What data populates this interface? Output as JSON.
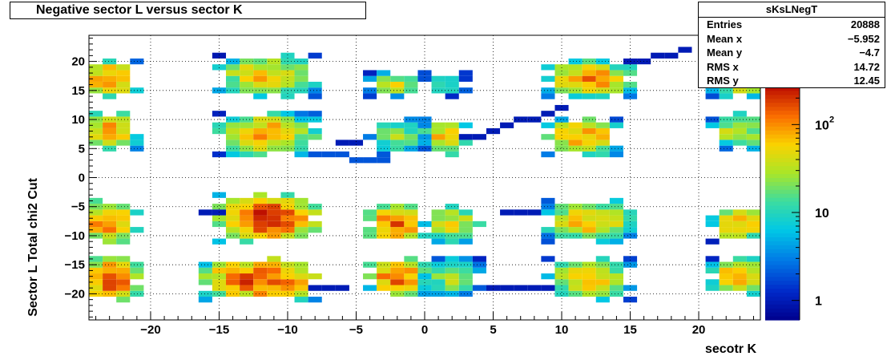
{
  "chart_data": {
    "type": "heatmap",
    "title": "Negative sector L versus sector K",
    "xlabel": "secotr K",
    "ylabel": "Sector L  Total chi2 Cut",
    "xlim": [
      -24.5,
      24.5
    ],
    "ylim": [
      -24.5,
      24.5
    ],
    "x_ticks": [
      -20,
      -15,
      -10,
      -5,
      0,
      5,
      10,
      15,
      20
    ],
    "y_ticks": [
      -20,
      -15,
      -10,
      -5,
      0,
      5,
      10,
      15,
      20
    ],
    "x_tick_labels": [
      "−20",
      "−15",
      "−10",
      "−5",
      "0",
      "5",
      "10",
      "15",
      "20"
    ],
    "y_tick_labels": [
      "−20",
      "−15",
      "−10",
      "−5",
      "0",
      "5",
      "10",
      "15",
      "20"
    ],
    "grid": true,
    "z_scale": "log",
    "zlim": [
      0.6,
      300
    ],
    "colorbar_labels": [
      {
        "value": 1,
        "label": "1"
      },
      {
        "value": 10,
        "label": "10"
      },
      {
        "value": 100,
        "label": "10",
        "exponent": "2"
      }
    ],
    "stats": {
      "name": "sKsLNegT",
      "rows": [
        {
          "label": "Entries",
          "value": "20888"
        },
        {
          "label": "Mean x",
          "value": "−5.952"
        },
        {
          "label": "Mean y",
          "value": "−4.7"
        },
        {
          "label": "RMS x",
          "value": "14.72"
        },
        {
          "label": "RMS y",
          "value": "12.45"
        }
      ]
    },
    "clusters": [
      {
        "x": [
          -24,
          -22
        ],
        "y": [
          15,
          19
        ],
        "peak": 130
      },
      {
        "x": [
          -24,
          -22
        ],
        "y": [
          6,
          10
        ],
        "peak": 110
      },
      {
        "x": [
          -24,
          -22
        ],
        "y": [
          -10,
          -5
        ],
        "peak": 150
      },
      {
        "x": [
          -24,
          -22
        ],
        "y": [
          -20,
          -15
        ],
        "peak": 200
      },
      {
        "x": [
          -14,
          -9
        ],
        "y": [
          15,
          20
        ],
        "peak": 80
      },
      {
        "x": [
          -14,
          -9
        ],
        "y": [
          5,
          10
        ],
        "peak": 100
      },
      {
        "x": [
          -14,
          -9
        ],
        "y": [
          -10,
          -4
        ],
        "peak": 250
      },
      {
        "x": [
          -15,
          -9
        ],
        "y": [
          -20,
          -15
        ],
        "peak": 220
      },
      {
        "x": [
          -3,
          -1
        ],
        "y": [
          15,
          17
        ],
        "peak": 45
      },
      {
        "x": [
          -3,
          -1
        ],
        "y": [
          5,
          9
        ],
        "peak": 30
      },
      {
        "x": [
          -3,
          -1
        ],
        "y": [
          -10,
          -6
        ],
        "peak": 180
      },
      {
        "x": [
          -3,
          -1
        ],
        "y": [
          -19,
          -15
        ],
        "peak": 170
      },
      {
        "x": [
          1,
          2
        ],
        "y": [
          15,
          17
        ],
        "peak": 15
      },
      {
        "x": [
          1,
          2
        ],
        "y": [
          5,
          9
        ],
        "peak": 90
      },
      {
        "x": [
          1,
          3
        ],
        "y": [
          -10,
          -6
        ],
        "peak": 60
      },
      {
        "x": [
          1,
          3
        ],
        "y": [
          -19,
          -15
        ],
        "peak": 40
      },
      {
        "x": [
          10,
          14
        ],
        "y": [
          15,
          19
        ],
        "peak": 120
      },
      {
        "x": [
          10,
          13
        ],
        "y": [
          5,
          9
        ],
        "peak": 120
      },
      {
        "x": [
          10,
          14
        ],
        "y": [
          -10,
          -5
        ],
        "peak": 90
      },
      {
        "x": [
          10,
          14
        ],
        "y": [
          -20,
          -15
        ],
        "peak": 70
      },
      {
        "x": [
          22,
          24
        ],
        "y": [
          15,
          19
        ],
        "peak": 80
      },
      {
        "x": [
          22,
          24
        ],
        "y": [
          6,
          10
        ],
        "peak": 50
      },
      {
        "x": [
          22,
          24
        ],
        "y": [
          -10,
          -6
        ],
        "peak": 90
      },
      {
        "x": [
          22,
          24
        ],
        "y": [
          -19,
          -15
        ],
        "peak": 110
      }
    ],
    "streaks": [
      {
        "x1": 1,
        "y1": 5,
        "x2": 10,
        "y2": 12,
        "level": 1
      },
      {
        "x1": 10,
        "y1": 17,
        "x2": 19,
        "y2": 22,
        "level": 1
      },
      {
        "x1": -6,
        "y1": 6,
        "x2": -2,
        "y2": 7,
        "level": 1
      },
      {
        "x1": -9,
        "y1": 4,
        "x2": -3,
        "y2": 3,
        "level": 2
      },
      {
        "x1": -16,
        "y1": -6,
        "x2": -14,
        "y2": -6,
        "level": 1
      },
      {
        "x1": 6,
        "y1": -6,
        "x2": 9,
        "y2": -6,
        "level": 1
      },
      {
        "x1": -8,
        "y1": -19,
        "x2": -6,
        "y2": -19,
        "level": 1
      },
      {
        "x1": 5,
        "y1": -19,
        "x2": 9,
        "y2": -19,
        "level": 1
      }
    ]
  }
}
